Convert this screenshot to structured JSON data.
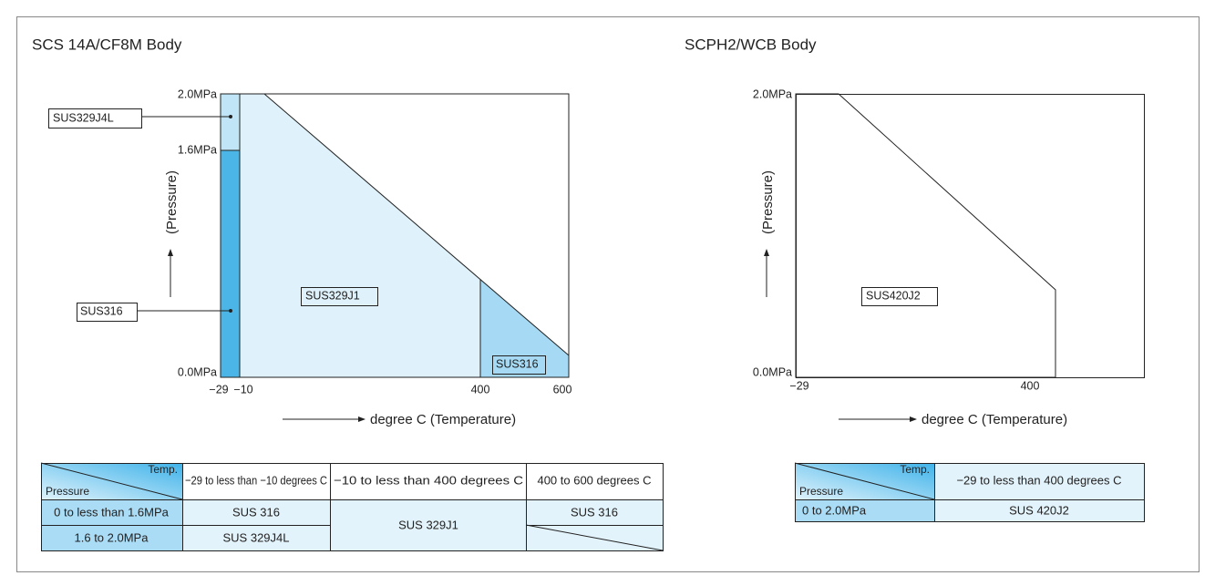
{
  "left": {
    "title": "SCS 14A/CF8M Body",
    "y_labels": [
      "2.0MPa",
      "1.6MPa",
      "0.0MPa"
    ],
    "x_labels": [
      "−29",
      "−10",
      "400",
      "600"
    ],
    "y_axis": "(Pressure)",
    "x_axis": "degree C (Temperature)",
    "callouts": [
      "SUS329J4L",
      "SUS316"
    ],
    "regions": [
      "SUS329J1",
      "SUS316"
    ],
    "table": {
      "corner_top": "Temp.",
      "corner_bottom": "Pressure",
      "header": [
        "−29 to less than −10 degrees C",
        "−10 to less than 400 degrees C",
        "400 to 600 degrees C"
      ],
      "rows": [
        [
          "0 to less than 1.6MPa",
          "SUS 316",
          "SUS 329J1",
          "SUS 316"
        ],
        [
          "1.6 to 2.0MPa",
          "SUS 329J4L"
        ]
      ]
    }
  },
  "right": {
    "title": "SCPH2/WCB Body",
    "y_labels": [
      "2.0MPa",
      "0.0MPa"
    ],
    "x_labels": [
      "−29",
      "400"
    ],
    "y_axis": "(Pressure)",
    "x_axis": "degree C (Temperature)",
    "regions": [
      "SUS420J2"
    ],
    "table": {
      "corner_top": "Temp.",
      "corner_bottom": "Pressure",
      "header": [
        "−29 to less than 400 degrees C"
      ],
      "rows": [
        [
          "0 to 2.0MPa",
          "SUS 420J2"
        ]
      ]
    }
  }
}
